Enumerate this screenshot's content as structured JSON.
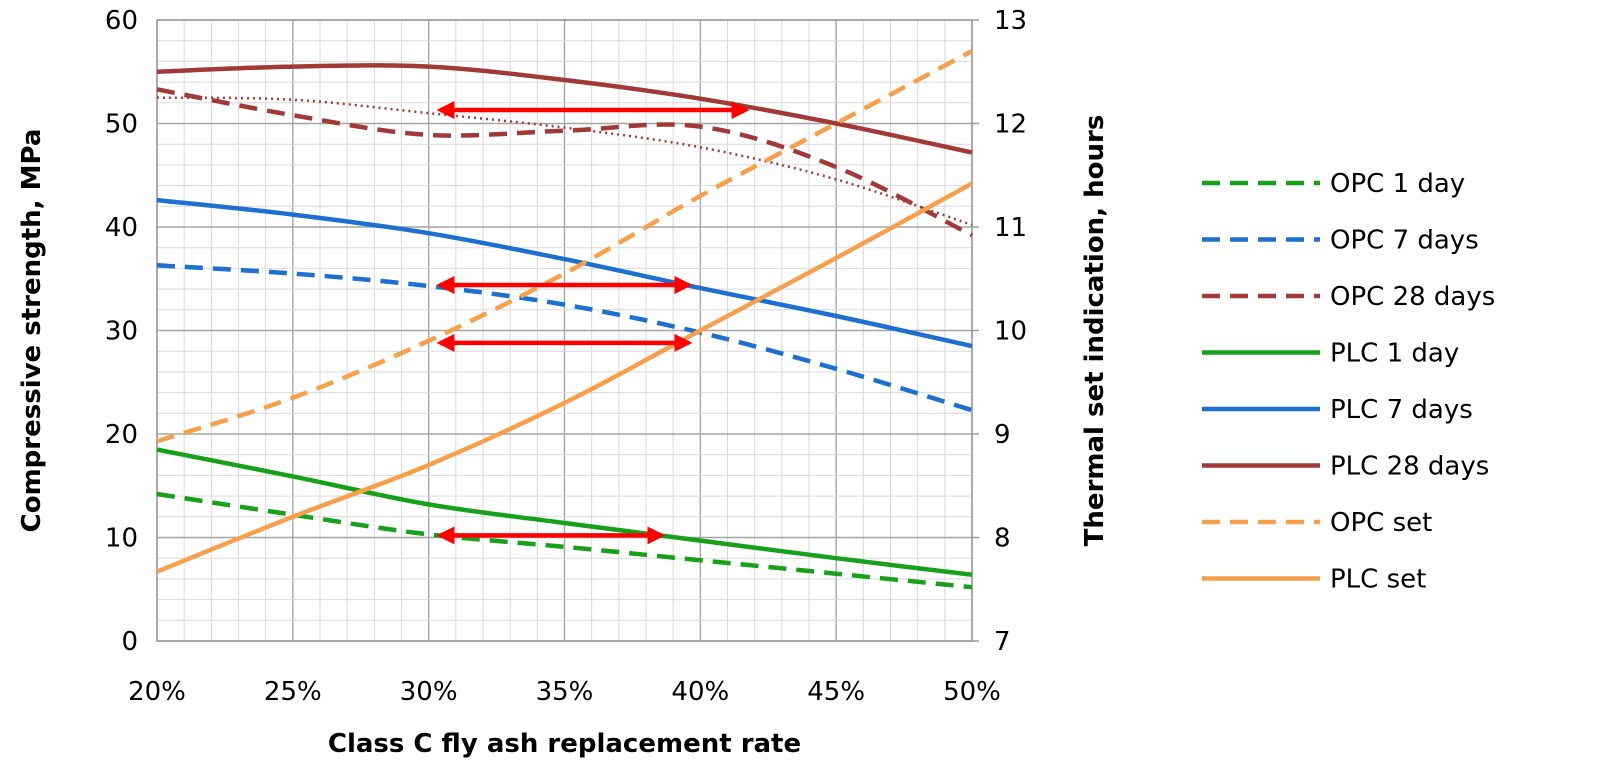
{
  "chart_data": {
    "type": "line",
    "xlabel": "Class C fly ash replacement rate",
    "ylabel": "Compressive strength, MPa",
    "y2label": "Thermal set indication, hours",
    "x": [
      20,
      25,
      30,
      35,
      40,
      45,
      50
    ],
    "x_tick_labels": [
      "20%",
      "25%",
      "30%",
      "35%",
      "40%",
      "45%",
      "50%"
    ],
    "xlim": [
      20,
      50
    ],
    "ylim": [
      0,
      60
    ],
    "y_ticks": [
      0,
      10,
      20,
      30,
      40,
      50,
      60
    ],
    "y_tick_labels": [
      "0",
      "10",
      "20",
      "30",
      "40",
      "50",
      "60"
    ],
    "y2lim": [
      7,
      13
    ],
    "y2_ticks": [
      7,
      8,
      9,
      10,
      11,
      12,
      13
    ],
    "y2_tick_labels": [
      "7",
      "8",
      "9",
      "10",
      "11",
      "12",
      "13"
    ],
    "grid": true,
    "minor_grid": true,
    "legend_position": "right",
    "series": [
      {
        "name": "OPC 1 day",
        "axis": "left",
        "color": "#17a01a",
        "dash": true,
        "values": [
          14.2,
          12.2,
          10.3,
          9.1,
          7.8,
          6.5,
          5.2
        ]
      },
      {
        "name": "OPC 7 days",
        "axis": "left",
        "color": "#1d6fd0",
        "dash": true,
        "values": [
          36.3,
          35.5,
          34.3,
          32.5,
          29.8,
          26.3,
          22.3
        ]
      },
      {
        "name": "OPC 28 days",
        "axis": "left",
        "color": "#a13a36",
        "dash": true,
        "values": [
          53.3,
          50.8,
          48.9,
          49.3,
          49.7,
          45.8,
          39.2
        ]
      },
      {
        "name": "PLC 1 day",
        "axis": "left",
        "color": "#17a01a",
        "dash": false,
        "values": [
          18.5,
          15.9,
          13.2,
          11.4,
          9.7,
          8.0,
          6.4
        ]
      },
      {
        "name": "PLC 7 days",
        "axis": "left",
        "color": "#1d6fd0",
        "dash": false,
        "values": [
          42.6,
          41.2,
          39.4,
          36.9,
          34.1,
          31.4,
          28.5
        ]
      },
      {
        "name": "PLC 28 days",
        "axis": "left",
        "color": "#a13a36",
        "dash": false,
        "values": [
          55.0,
          55.5,
          55.5,
          54.2,
          52.4,
          50.0,
          47.2
        ]
      },
      {
        "name": "OPC set",
        "axis": "right",
        "color": "#f6a04d",
        "dash": true,
        "values": [
          8.93,
          9.35,
          9.9,
          10.55,
          11.3,
          12.0,
          12.7
        ]
      },
      {
        "name": "PLC set",
        "axis": "right",
        "color": "#f6a04d",
        "dash": false,
        "values": [
          7.67,
          8.2,
          8.7,
          9.3,
          10.0,
          10.7,
          11.42
        ]
      }
    ],
    "trendline": {
      "axis": "left",
      "color": "#a13a36",
      "x": [
        20,
        25,
        30,
        35,
        40,
        45,
        50
      ],
      "values": [
        52.5,
        52.3,
        51.0,
        49.6,
        47.7,
        44.6,
        40.2
      ]
    },
    "annotations": [
      {
        "type": "double-arrow",
        "color": "#ff0000",
        "y": 51.3,
        "x1": 30.2,
        "x2": 41.9
      },
      {
        "type": "double-arrow",
        "color": "#ff0000",
        "y": 34.4,
        "x1": 30.2,
        "x2": 39.8
      },
      {
        "type": "double-arrow",
        "color": "#ff0000",
        "y": 28.8,
        "x1": 30.2,
        "x2": 39.8
      },
      {
        "type": "double-arrow",
        "color": "#ff0000",
        "y": 10.2,
        "x1": 30.2,
        "x2": 38.8
      }
    ]
  }
}
